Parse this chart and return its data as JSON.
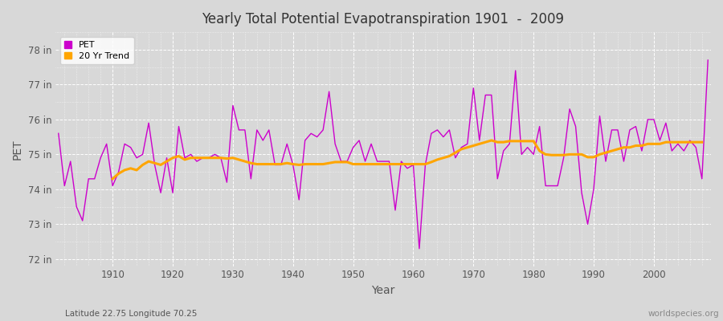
{
  "title": "Yearly Total Potential Evapotranspiration 1901  -  2009",
  "xlabel": "Year",
  "ylabel": "PET",
  "subtitle_left": "Latitude 22.75 Longitude 70.25",
  "subtitle_right": "worldspecies.org",
  "pet_color": "#CC00CC",
  "trend_color": "#FFA500",
  "bg_color": "#D8D8D8",
  "plot_bg_color": "#D8D8D8",
  "ylim": [
    71.8,
    78.5
  ],
  "xlim": [
    1900.5,
    2009.5
  ],
  "yticks": [
    72,
    73,
    74,
    75,
    76,
    77,
    78
  ],
  "ytick_labels": [
    "72 in",
    "73 in",
    "74 in",
    "75 in",
    "76 in",
    "77 in",
    "78 in"
  ],
  "xticks": [
    1910,
    1920,
    1930,
    1940,
    1950,
    1960,
    1970,
    1980,
    1990,
    2000
  ],
  "years": [
    1901,
    1902,
    1903,
    1904,
    1905,
    1906,
    1907,
    1908,
    1909,
    1910,
    1911,
    1912,
    1913,
    1914,
    1915,
    1916,
    1917,
    1918,
    1919,
    1920,
    1921,
    1922,
    1923,
    1924,
    1925,
    1926,
    1927,
    1928,
    1929,
    1930,
    1931,
    1932,
    1933,
    1934,
    1935,
    1936,
    1937,
    1938,
    1939,
    1940,
    1941,
    1942,
    1943,
    1944,
    1945,
    1946,
    1947,
    1948,
    1949,
    1950,
    1951,
    1952,
    1953,
    1954,
    1955,
    1956,
    1957,
    1958,
    1959,
    1960,
    1961,
    1962,
    1963,
    1964,
    1965,
    1966,
    1967,
    1968,
    1969,
    1970,
    1971,
    1972,
    1973,
    1974,
    1975,
    1976,
    1977,
    1978,
    1979,
    1980,
    1981,
    1982,
    1983,
    1984,
    1985,
    1986,
    1987,
    1988,
    1989,
    1990,
    1991,
    1992,
    1993,
    1994,
    1995,
    1996,
    1997,
    1998,
    1999,
    2000,
    2001,
    2002,
    2003,
    2004,
    2005,
    2006,
    2007,
    2008,
    2009
  ],
  "pet_values": [
    75.6,
    74.1,
    74.8,
    73.5,
    73.1,
    74.3,
    74.3,
    74.9,
    75.3,
    74.1,
    74.5,
    75.3,
    75.2,
    74.9,
    75.0,
    75.9,
    74.7,
    73.9,
    74.9,
    73.9,
    75.8,
    74.9,
    75.0,
    74.8,
    74.9,
    74.9,
    75.0,
    74.9,
    74.2,
    76.4,
    75.7,
    75.7,
    74.3,
    75.7,
    75.4,
    75.7,
    74.7,
    74.7,
    75.3,
    74.7,
    73.7,
    75.4,
    75.6,
    75.5,
    75.7,
    76.8,
    75.3,
    74.8,
    74.8,
    75.2,
    75.4,
    74.8,
    75.3,
    74.8,
    74.8,
    74.8,
    73.4,
    74.8,
    74.6,
    74.7,
    72.3,
    74.7,
    75.6,
    75.7,
    75.5,
    75.7,
    74.9,
    75.2,
    75.3,
    76.9,
    75.4,
    76.7,
    76.7,
    74.3,
    75.1,
    75.3,
    77.4,
    75.0,
    75.2,
    75.0,
    75.8,
    74.1,
    74.1,
    74.1,
    74.9,
    76.3,
    75.8,
    73.9,
    73.0,
    74.0,
    76.1,
    74.8,
    75.7,
    75.7,
    74.8,
    75.7,
    75.8,
    75.1,
    76.0,
    76.0,
    75.4,
    75.9,
    75.1,
    75.3,
    75.1,
    75.4,
    75.2,
    74.3,
    77.7
  ],
  "trend_values": [
    null,
    null,
    null,
    null,
    null,
    null,
    null,
    null,
    null,
    74.3,
    74.45,
    74.55,
    74.6,
    74.55,
    74.7,
    74.8,
    74.75,
    74.7,
    74.8,
    74.9,
    74.95,
    74.85,
    74.9,
    74.9,
    74.9,
    74.9,
    74.9,
    74.9,
    74.88,
    74.9,
    74.85,
    74.8,
    74.75,
    74.72,
    74.72,
    74.72,
    74.72,
    74.72,
    74.75,
    74.72,
    74.7,
    74.72,
    74.72,
    74.72,
    74.72,
    74.75,
    74.78,
    74.78,
    74.78,
    74.72,
    74.72,
    74.72,
    74.72,
    74.72,
    74.72,
    74.72,
    74.72,
    74.72,
    74.72,
    74.72,
    74.72,
    74.72,
    74.78,
    74.85,
    74.9,
    74.95,
    75.05,
    75.15,
    75.2,
    75.25,
    75.3,
    75.35,
    75.4,
    75.35,
    75.35,
    75.38,
    75.38,
    75.38,
    75.38,
    75.38,
    75.1,
    75.0,
    74.98,
    74.98,
    74.98,
    75.0,
    75.0,
    75.0,
    74.92,
    74.92,
    75.0,
    75.05,
    75.1,
    75.15,
    75.2,
    75.2,
    75.25,
    75.25,
    75.3,
    75.3,
    75.3,
    75.35,
    75.35,
    75.35,
    75.35,
    75.35,
    75.35,
    75.35,
    null
  ]
}
